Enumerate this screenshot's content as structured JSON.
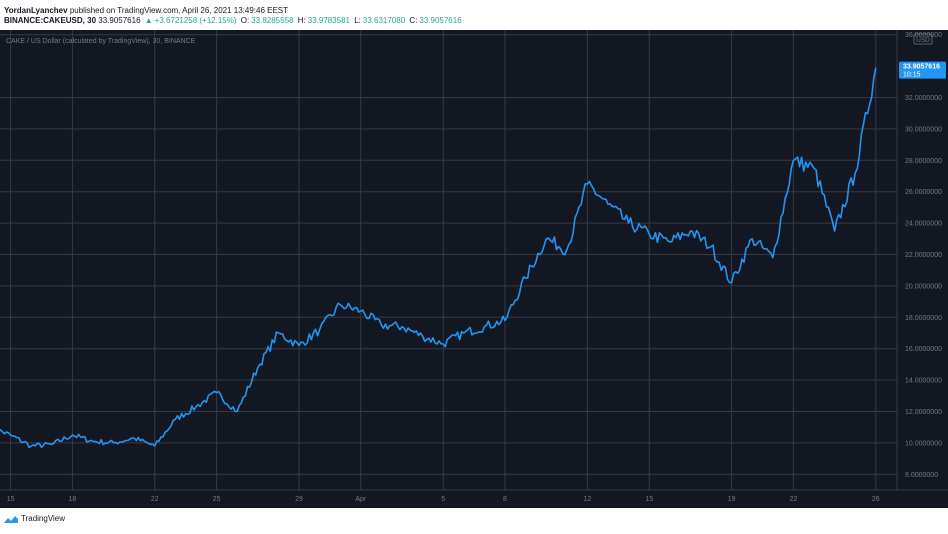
{
  "header": {
    "author": "YordanLyanchev",
    "published": "published on TradingView.com, April 26, 2021 13:49:46 EEST",
    "symbol": "BINANCE:CAKEUSD, 30",
    "last": "33.9057616",
    "change_arrow": "▲",
    "change": "+3.6721258 (+12.15%)",
    "o_label": "O:",
    "o_value": "33.8285558",
    "h_label": "H:",
    "h_value": "33.9783581",
    "l_label": "L:",
    "l_value": "33.6317080",
    "c_label": "C:",
    "c_value": "33.9057616"
  },
  "chart": {
    "legend": "CAKE / US Dollar (calculated by TradingView), 30, BINANCE",
    "currency_badge": "USD",
    "price_label": "33.9057616",
    "countdown": "10:15",
    "colors": {
      "background": "#131722",
      "grid": "#363a45",
      "line": "#2196f3",
      "label_bg": "#2196f3",
      "text": "#787b86"
    }
  },
  "footer": {
    "brand": "TradingView"
  },
  "chart_data": {
    "type": "line",
    "title": "CAKE / US Dollar (calculated by TradingView), 30, BINANCE",
    "xlabel": "",
    "ylabel": "",
    "x_ticks": [
      "15",
      "18",
      "22",
      "25",
      "29",
      "Apr",
      "5",
      "8",
      "12",
      "15",
      "19",
      "22",
      "26"
    ],
    "y_ticks": [
      "8.0000000",
      "10.0000000",
      "12.0000000",
      "14.0000000",
      "16.0000000",
      "18.0000000",
      "20.0000000",
      "22.0000000",
      "24.0000000",
      "26.0000000",
      "28.0000000",
      "30.0000000",
      "32.0000000",
      "36.0000000"
    ],
    "ylim": [
      7,
      36.3
    ],
    "grid": true,
    "series": [
      {
        "x": [
          "Mar 14",
          "Mar 15",
          "Mar 16",
          "Mar 17",
          "Mar 18",
          "Mar 19",
          "Mar 20",
          "Mar 21",
          "Mar 22",
          "Mar 23",
          "Mar 24",
          "Mar 25",
          "Mar 26",
          "Mar 27",
          "Mar 28",
          "Mar 29",
          "Mar 30",
          "Mar 31",
          "Apr 1",
          "Apr 2",
          "Apr 3",
          "Apr 4",
          "Apr 5",
          "Apr 6",
          "Apr 7",
          "Apr 8",
          "Apr 9",
          "Apr 10",
          "Apr 11",
          "Apr 12",
          "Apr 13",
          "Apr 14",
          "Apr 15",
          "Apr 16",
          "Apr 17",
          "Apr 18",
          "Apr 19",
          "Apr 20",
          "Apr 21",
          "Apr 22",
          "Apr 23",
          "Apr 24",
          "Apr 25",
          "Apr 26"
        ],
        "values": [
          11.0,
          10.5,
          9.8,
          9.9,
          10.5,
          10.1,
          10.0,
          10.3,
          9.8,
          11.5,
          12.3,
          13.2,
          12.0,
          14.8,
          17.0,
          16.2,
          17.2,
          18.8,
          18.4,
          17.5,
          17.4,
          16.8,
          16.3,
          17.0,
          17.4,
          17.8,
          20.5,
          23.0,
          22.3,
          26.5,
          25.2,
          24.0,
          23.3,
          22.8,
          23.5,
          22.5,
          20.2,
          23.0,
          21.8,
          28.0,
          27.5,
          23.5,
          27.2,
          33.9
        ]
      }
    ]
  }
}
